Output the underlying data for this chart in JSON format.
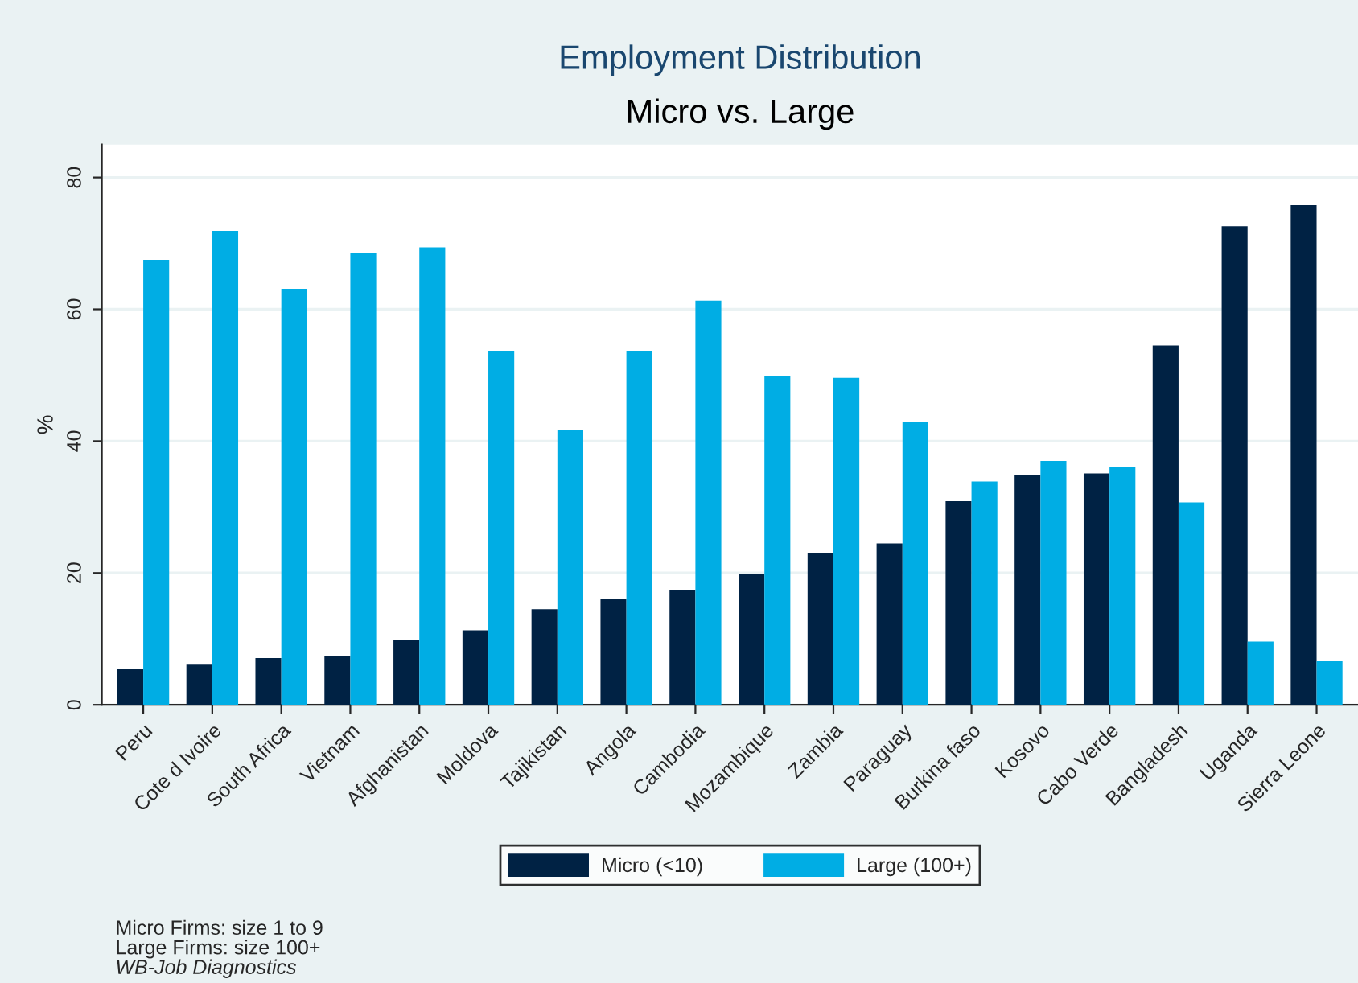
{
  "chart_data": {
    "type": "bar",
    "title": "Employment Distribution",
    "subtitle": "Micro vs. Large",
    "ylabel": "%",
    "categories": [
      "Peru",
      "Cote d Ivoire",
      "South Africa",
      "Vietnam",
      "Afghanistan",
      "Moldova",
      "Tajikistan",
      "Angola",
      "Cambodia",
      "Mozambique",
      "Zambia",
      "Paraguay",
      "Burkina faso",
      "Kosovo",
      "Cabo Verde",
      "Bangladesh",
      "Uganda",
      "Sierra Leone"
    ],
    "series": [
      {
        "name": "Micro (<10)",
        "color": "#002244",
        "values": [
          5.4,
          6.1,
          7.1,
          7.4,
          9.8,
          11.3,
          14.5,
          16.0,
          17.4,
          19.9,
          23.1,
          24.5,
          30.9,
          34.8,
          35.1,
          54.5,
          72.6,
          75.8
        ]
      },
      {
        "name": "Large (100+)",
        "color": "#00ade4",
        "values": [
          67.5,
          71.9,
          63.1,
          68.5,
          69.4,
          53.7,
          41.7,
          53.7,
          61.3,
          49.8,
          49.6,
          42.9,
          33.9,
          37.0,
          36.1,
          30.7,
          9.6,
          6.6
        ]
      }
    ],
    "ylim": [
      0,
      85
    ],
    "yticks": [
      0,
      20,
      40,
      60,
      80
    ],
    "grid": "y",
    "legend": "bottom",
    "annotations": [
      "Micro Firms: size 1 to 9",
      "Large Firms: size 100+",
      "WB-Job Diagnostics"
    ]
  }
}
